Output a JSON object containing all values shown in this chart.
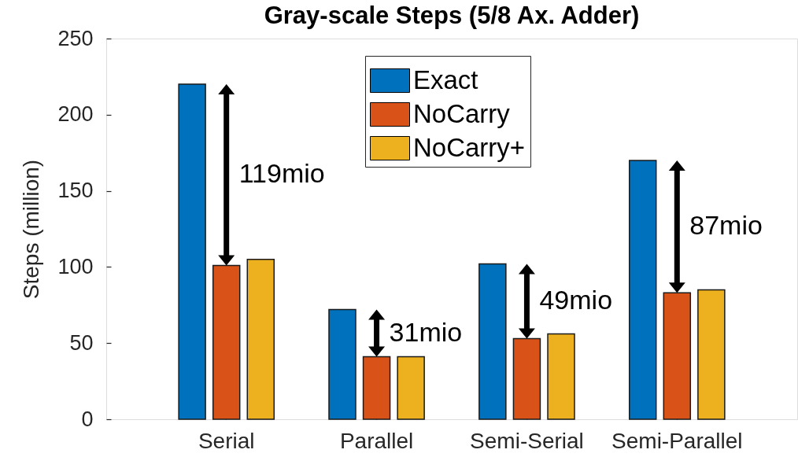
{
  "chart_data": {
    "type": "bar",
    "title": "Gray-scale Steps (5/8 Ax. Adder)",
    "ylabel": "Steps (million)",
    "categories": [
      "Serial",
      "Parallel",
      "Semi-Serial",
      "Semi-Parallel"
    ],
    "series": [
      {
        "name": "Exact",
        "color": "#0072bd",
        "values": [
          220,
          72,
          102,
          170
        ]
      },
      {
        "name": "NoCarry",
        "color": "#d95319",
        "values": [
          101,
          41,
          53,
          83
        ]
      },
      {
        "name": "NoCarry+",
        "color": "#edb120",
        "values": [
          105,
          41,
          56,
          85
        ]
      }
    ],
    "ylim": [
      0,
      250
    ],
    "yticks": [
      0,
      50,
      100,
      150,
      200,
      250
    ],
    "legend": "top",
    "annotations": [
      {
        "text": "119mio",
        "x": "Serial",
        "y": 101
      },
      {
        "text": "31mio",
        "x": "Parallel",
        "y": 41
      },
      {
        "text": "49mio",
        "x": "Semi-Serial",
        "y": 53
      },
      {
        "text": "87mio",
        "x": "Semi-Parallel",
        "y": 83
      }
    ]
  }
}
